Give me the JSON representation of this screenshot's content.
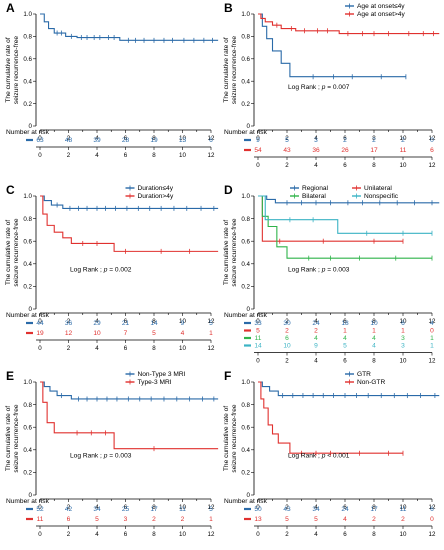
{
  "figure": {
    "ylabel_line1": "The cumulative rate of",
    "ylabel_line2": "seizure recurrence-free",
    "risk_title": "Number at risk"
  },
  "chart_data": [
    {
      "letter": "A",
      "type": "line",
      "ylim": [
        0,
        1.0
      ],
      "yticks": [
        0,
        0.2,
        0.4,
        0.6,
        0.8,
        1.0
      ],
      "ytick_labels": [
        "0",
        "0.2",
        "0.4",
        "0.6",
        "0.8",
        "1.0"
      ],
      "xlim": [
        0,
        12
      ],
      "xticks": [
        0,
        2,
        4,
        6,
        8,
        10,
        12
      ],
      "annotation": "",
      "legend": [],
      "series": [
        {
          "color": "#2a6aa8",
          "x": [
            0,
            0.3,
            0.6,
            1.0,
            1.8,
            2.6,
            5.6,
            12.5
          ],
          "y": [
            1.0,
            0.93,
            0.87,
            0.83,
            0.8,
            0.79,
            0.765,
            0.765
          ],
          "censor_x": [
            1.2,
            1.5,
            2.2,
            2.9,
            3.3,
            3.8,
            4.2,
            4.8,
            5.2,
            6.2,
            6.7,
            7.3,
            8.0,
            8.7,
            9.3,
            10.1,
            10.8,
            11.5,
            12.1
          ]
        }
      ],
      "risk": [
        {
          "color": "#2a6aa8",
          "values": [
            "63",
            "48",
            "39",
            "28",
            "19",
            "13",
            "6"
          ]
        }
      ]
    },
    {
      "letter": "B",
      "type": "line",
      "ylim": [
        0,
        1.0
      ],
      "yticks": [
        0,
        0.2,
        0.4,
        0.6,
        0.8,
        1.0
      ],
      "ytick_labels": [
        "0",
        "0.2",
        "0.4",
        "0.6",
        "0.8",
        "1.0"
      ],
      "xlim": [
        0,
        12
      ],
      "xticks": [
        0,
        2,
        4,
        6,
        8,
        10,
        12
      ],
      "annotation": "Log Rank ; p = 0.007",
      "legend": [
        {
          "color": "#2a6aa8",
          "label": "Age at onset≤4y"
        },
        {
          "color": "#e0312f",
          "label": "Age at onset>4y"
        }
      ],
      "series": [
        {
          "color": "#2a6aa8",
          "x": [
            0,
            0.3,
            0.6,
            1.0,
            1.6,
            2.2,
            10.2
          ],
          "y": [
            1.0,
            0.89,
            0.78,
            0.67,
            0.56,
            0.44,
            0.44
          ],
          "censor_x": [
            3.8,
            5.2,
            6.5,
            8.5,
            10.2
          ]
        },
        {
          "color": "#e0312f",
          "x": [
            0,
            0.2,
            0.5,
            1.0,
            1.6,
            2.6,
            5.6,
            12.5
          ],
          "y": [
            1.0,
            0.96,
            0.93,
            0.9,
            0.87,
            0.85,
            0.825,
            0.825
          ],
          "censor_x": [
            1.3,
            2.3,
            3.2,
            4.1,
            4.8,
            6.2,
            7.2,
            8.0,
            9.0,
            10.4,
            11.4,
            12.1
          ]
        }
      ],
      "risk": [
        {
          "color": "#2a6aa8",
          "values": [
            "9",
            "5",
            "3",
            "2",
            "2",
            "2",
            "0"
          ]
        },
        {
          "color": "#e0312f",
          "values": [
            "54",
            "43",
            "36",
            "26",
            "17",
            "11",
            "6"
          ]
        }
      ]
    },
    {
      "letter": "C",
      "type": "line",
      "ylim": [
        0,
        1.0
      ],
      "yticks": [
        0,
        0.2,
        0.4,
        0.6,
        0.8,
        1.0
      ],
      "ytick_labels": [
        "0",
        "0.2",
        "0.4",
        "0.6",
        "0.8",
        "1.0"
      ],
      "xlim": [
        0,
        12
      ],
      "xticks": [
        0,
        2,
        4,
        6,
        8,
        10,
        12
      ],
      "annotation": "Log Rank ; p = 0.002",
      "legend": [
        {
          "color": "#2a6aa8",
          "label": "Duration≤4y"
        },
        {
          "color": "#e0312f",
          "label": "Duration>4y"
        }
      ],
      "series": [
        {
          "color": "#2a6aa8",
          "x": [
            0,
            0.3,
            0.8,
            1.6,
            12.5
          ],
          "y": [
            1.0,
            0.96,
            0.92,
            0.89,
            0.89
          ],
          "censor_x": [
            1.2,
            2.1,
            2.7,
            3.3,
            4.0,
            4.6,
            5.3,
            6.1,
            6.9,
            7.7,
            8.5,
            9.4,
            10.3,
            11.3,
            12.2
          ]
        },
        {
          "color": "#e0312f",
          "x": [
            0,
            0.2,
            0.5,
            1.0,
            1.6,
            2.2,
            5.2,
            12.5
          ],
          "y": [
            1.0,
            0.84,
            0.74,
            0.68,
            0.63,
            0.58,
            0.51,
            0.51
          ],
          "censor_x": [
            3.0,
            4.0,
            6.0,
            8.5,
            10.5
          ]
        }
      ],
      "risk": [
        {
          "color": "#2a6aa8",
          "values": [
            "44",
            "36",
            "29",
            "21",
            "14",
            "9",
            "5"
          ]
        },
        {
          "color": "#e0312f",
          "values": [
            "19",
            "12",
            "10",
            "7",
            "5",
            "4",
            "1"
          ]
        }
      ]
    },
    {
      "letter": "D",
      "type": "line",
      "ylim": [
        0,
        1.0
      ],
      "yticks": [
        0,
        0.2,
        0.4,
        0.6,
        0.8,
        1.0
      ],
      "ytick_labels": [
        "0",
        "0.2",
        "0.4",
        "0.6",
        "0.8",
        "1.0"
      ],
      "xlim": [
        0,
        12
      ],
      "xticks": [
        0,
        2,
        4,
        6,
        8,
        10,
        12
      ],
      "annotation": "Log Rank ; p = 0.003",
      "legend": [
        {
          "color": "#2a6aa8",
          "label": "Regional"
        },
        {
          "color": "#e0312f",
          "label": "Unilateral"
        },
        {
          "color": "#2fb34a",
          "label": "Bilateral"
        },
        {
          "color": "#3bb3c4",
          "label": "Nonspecific"
        }
      ],
      "series": [
        {
          "color": "#2a6aa8",
          "x": [
            0,
            0.6,
            1.2,
            12.5
          ],
          "y": [
            1.0,
            0.97,
            0.94,
            0.94
          ],
          "censor_x": [
            2.0,
            3.0,
            4.0,
            5.0,
            6.2,
            7.2,
            8.4,
            9.6,
            10.8,
            12.0
          ]
        },
        {
          "color": "#e0312f",
          "x": [
            0,
            0.3,
            10.0
          ],
          "y": [
            1.0,
            0.6,
            0.6
          ],
          "censor_x": [
            1.5,
            4.5,
            8.0,
            10.0
          ]
        },
        {
          "color": "#2fb34a",
          "x": [
            0,
            0.3,
            0.7,
            1.3,
            2.0,
            12.0
          ],
          "y": [
            1.0,
            0.82,
            0.73,
            0.55,
            0.45,
            0.45
          ],
          "censor_x": [
            3.5,
            5.0,
            7.0,
            9.5,
            12.0
          ]
        },
        {
          "color": "#3bb3c4",
          "x": [
            0,
            0.5,
            5.5,
            12.0
          ],
          "y": [
            1.0,
            0.79,
            0.67,
            0.67
          ],
          "censor_x": [
            2.2,
            3.8,
            7.5,
            10.0,
            12.0
          ]
        }
      ],
      "risk": [
        {
          "color": "#2a6aa8",
          "values": [
            "33",
            "30",
            "24",
            "18",
            "10",
            "6",
            "4"
          ]
        },
        {
          "color": "#e0312f",
          "values": [
            "5",
            "2",
            "2",
            "1",
            "1",
            "1",
            "0"
          ]
        },
        {
          "color": "#2fb34a",
          "values": [
            "11",
            "6",
            "4",
            "4",
            "4",
            "3",
            "1"
          ]
        },
        {
          "color": "#3bb3c4",
          "values": [
            "14",
            "10",
            "9",
            "5",
            "4",
            "3",
            "1"
          ]
        }
      ]
    },
    {
      "letter": "E",
      "type": "line",
      "ylim": [
        0,
        1.0
      ],
      "yticks": [
        0,
        0.2,
        0.4,
        0.6,
        0.8,
        1.0
      ],
      "ytick_labels": [
        "0",
        "0.2",
        "0.4",
        "0.6",
        "0.8",
        "1.0"
      ],
      "xlim": [
        0,
        12
      ],
      "xticks": [
        0,
        2,
        4,
        6,
        8,
        10,
        12
      ],
      "annotation": "Log Rank ; p = 0.003",
      "legend": [
        {
          "color": "#2a6aa8",
          "label": "Non-Type 3 MRI"
        },
        {
          "color": "#e0312f",
          "label": "Type-3 MRI"
        }
      ],
      "series": [
        {
          "color": "#2a6aa8",
          "x": [
            0,
            0.3,
            0.7,
            1.2,
            2.2,
            12.5
          ],
          "y": [
            1.0,
            0.96,
            0.92,
            0.88,
            0.85,
            0.85
          ],
          "censor_x": [
            1.5,
            2.7,
            3.3,
            4.0,
            4.7,
            5.4,
            6.2,
            7.0,
            7.8,
            8.7,
            9.6,
            10.5,
            11.4,
            12.2
          ]
        },
        {
          "color": "#e0312f",
          "x": [
            0,
            0.2,
            0.5,
            1.0,
            5.2,
            12.5
          ],
          "y": [
            1.0,
            0.82,
            0.64,
            0.55,
            0.41,
            0.41
          ],
          "censor_x": [
            2.6,
            3.6,
            4.6,
            8.0
          ]
        }
      ],
      "risk": [
        {
          "color": "#2a6aa8",
          "values": [
            "52",
            "42",
            "34",
            "25",
            "17",
            "11",
            "5"
          ]
        },
        {
          "color": "#e0312f",
          "values": [
            "11",
            "6",
            "5",
            "3",
            "2",
            "2",
            "1"
          ]
        }
      ]
    },
    {
      "letter": "F",
      "type": "line",
      "ylim": [
        0,
        1.0
      ],
      "yticks": [
        0,
        0.2,
        0.4,
        0.6,
        0.8,
        1.0
      ],
      "ytick_labels": [
        "0",
        "0.2",
        "0.4",
        "0.6",
        "0.8",
        "1.0"
      ],
      "xlim": [
        0,
        12
      ],
      "xticks": [
        0,
        2,
        4,
        6,
        8,
        10,
        12
      ],
      "annotation": "Log Rank ; p < 0.001",
      "legend": [
        {
          "color": "#2a6aa8",
          "label": "GTR"
        },
        {
          "color": "#e0312f",
          "label": "Non-GTR"
        }
      ],
      "series": [
        {
          "color": "#2a6aa8",
          "x": [
            0,
            0.3,
            0.8,
            1.4,
            12.5
          ],
          "y": [
            1.0,
            0.96,
            0.92,
            0.88,
            0.88
          ],
          "censor_x": [
            1.7,
            2.4,
            3.1,
            3.8,
            4.5,
            5.2,
            6.0,
            6.8,
            7.6,
            8.5,
            9.4,
            10.3,
            11.2,
            12.2
          ]
        },
        {
          "color": "#e0312f",
          "x": [
            0,
            0.2,
            0.4,
            0.7,
            1.0,
            1.4,
            2.2,
            10.0
          ],
          "y": [
            1.0,
            0.85,
            0.77,
            0.62,
            0.54,
            0.46,
            0.37,
            0.37
          ],
          "censor_x": [
            3.0,
            4.0,
            5.0,
            7.0,
            9.0,
            10.0
          ]
        }
      ],
      "risk": [
        {
          "color": "#2a6aa8",
          "values": [
            "50",
            "43",
            "34",
            "24",
            "17",
            "11",
            "6"
          ]
        },
        {
          "color": "#e0312f",
          "values": [
            "13",
            "5",
            "5",
            "4",
            "2",
            "2",
            "0"
          ]
        }
      ]
    }
  ]
}
